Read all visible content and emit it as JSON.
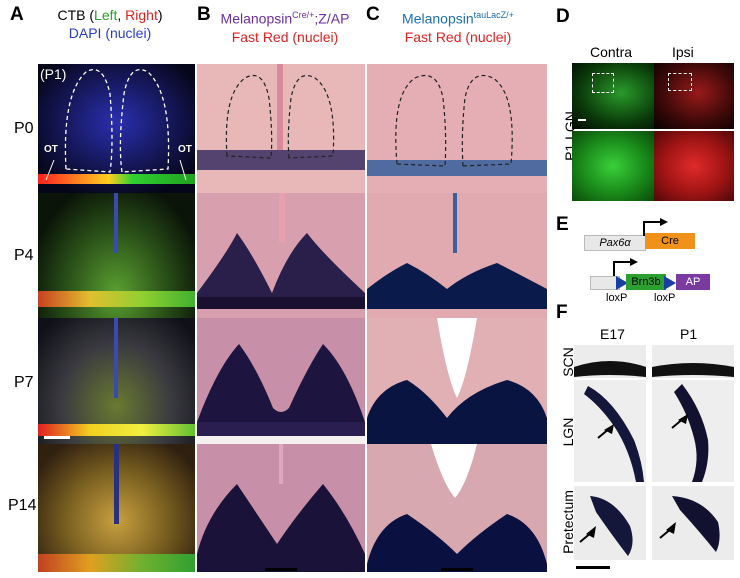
{
  "panels": {
    "A": "A",
    "B": "B",
    "C": "C",
    "D": "D",
    "E": "E",
    "F": "F"
  },
  "colA": {
    "line1_prefix": "CTB (",
    "left": "Left",
    "comma": ", ",
    "right": "Right",
    "close": ")",
    "line2_dapi": "DAPI",
    "line2_nuclei": " (nuclei)"
  },
  "colB": {
    "line1_main": "Melanopsin",
    "line1_sup": "Cre/+",
    "line1_rest": ";Z/AP",
    "line2": "Fast Red (nuclei)"
  },
  "colC": {
    "line1_main": "Melanopsin",
    "line1_sup": "tauLacZ/+",
    "line2": "Fast Red (nuclei)"
  },
  "rows": [
    "P0",
    "P4",
    "P7",
    "P14"
  ],
  "p1tag": "(P1)",
  "ot": "OT",
  "D": {
    "contra": "Contra",
    "ipsi": "Ipsi",
    "side": "P1 LGN"
  },
  "E": {
    "pax": "Pax6α",
    "cre": "Cre",
    "brn": "Brn3b",
    "ap": "AP",
    "loxp1": "loxP",
    "loxp2": "loxP"
  },
  "F": {
    "e17": "E17",
    "p1": "P1",
    "scn": "SCN",
    "lgn": "LGN",
    "pre": "Pretectum"
  }
}
